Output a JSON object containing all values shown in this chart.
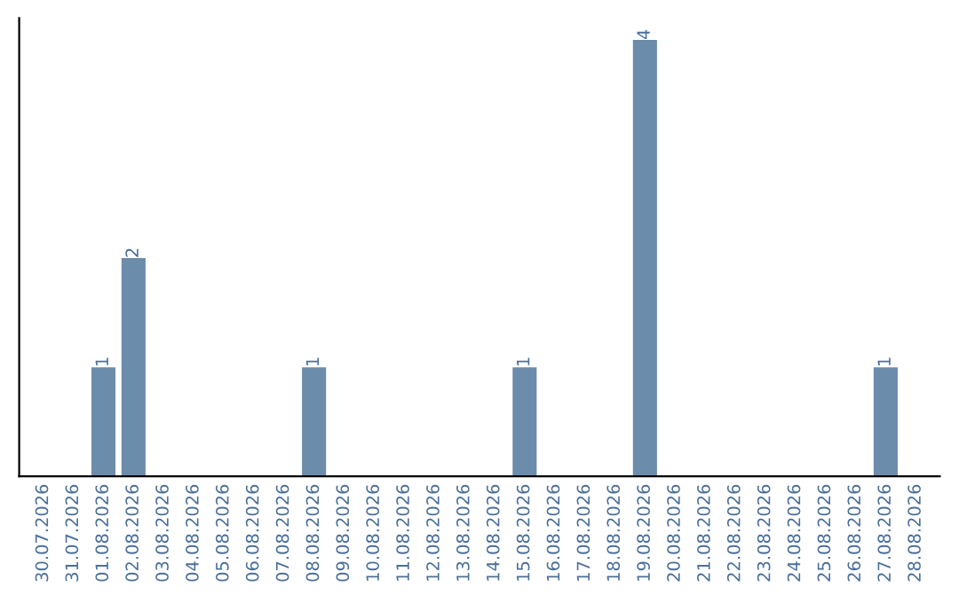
{
  "chart_data": {
    "type": "bar",
    "categories": [
      "30.07.2026",
      "31.07.2026",
      "01.08.2026",
      "02.08.2026",
      "03.08.2026",
      "04.08.2026",
      "05.08.2026",
      "06.08.2026",
      "07.08.2026",
      "08.08.2026",
      "09.08.2026",
      "10.08.2026",
      "11.08.2026",
      "12.08.2026",
      "13.08.2026",
      "14.08.2026",
      "15.08.2026",
      "16.08.2026",
      "17.08.2026",
      "18.08.2026",
      "19.08.2026",
      "20.08.2026",
      "21.08.2026",
      "22.08.2026",
      "23.08.2026",
      "24.08.2026",
      "25.08.2026",
      "26.08.2026",
      "27.08.2026",
      "28.08.2026"
    ],
    "values": [
      0,
      0,
      1,
      2,
      0,
      0,
      0,
      0,
      0,
      1,
      0,
      0,
      0,
      0,
      0,
      0,
      1,
      0,
      0,
      0,
      4,
      0,
      0,
      0,
      0,
      0,
      0,
      0,
      1,
      0
    ],
    "value_labels": [
      null,
      null,
      "1",
      "2",
      null,
      null,
      null,
      null,
      null,
      "1",
      null,
      null,
      null,
      null,
      null,
      null,
      "1",
      null,
      null,
      null,
      "4",
      null,
      null,
      null,
      null,
      null,
      null,
      null,
      "1",
      null
    ],
    "color": "#6b8cab",
    "tick_labels": "x",
    "grid": false,
    "legend": false
  }
}
